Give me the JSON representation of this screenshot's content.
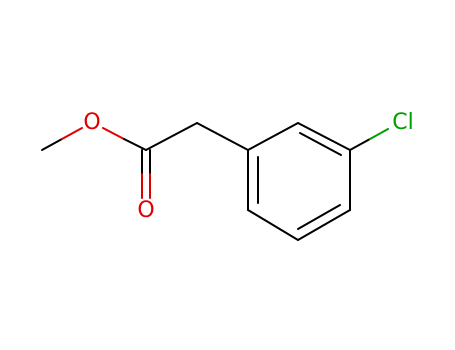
{
  "atoms": [
    {
      "label": "O"
    },
    {
      "label": "O"
    },
    {
      "label": "Cl"
    }
  ]
}
